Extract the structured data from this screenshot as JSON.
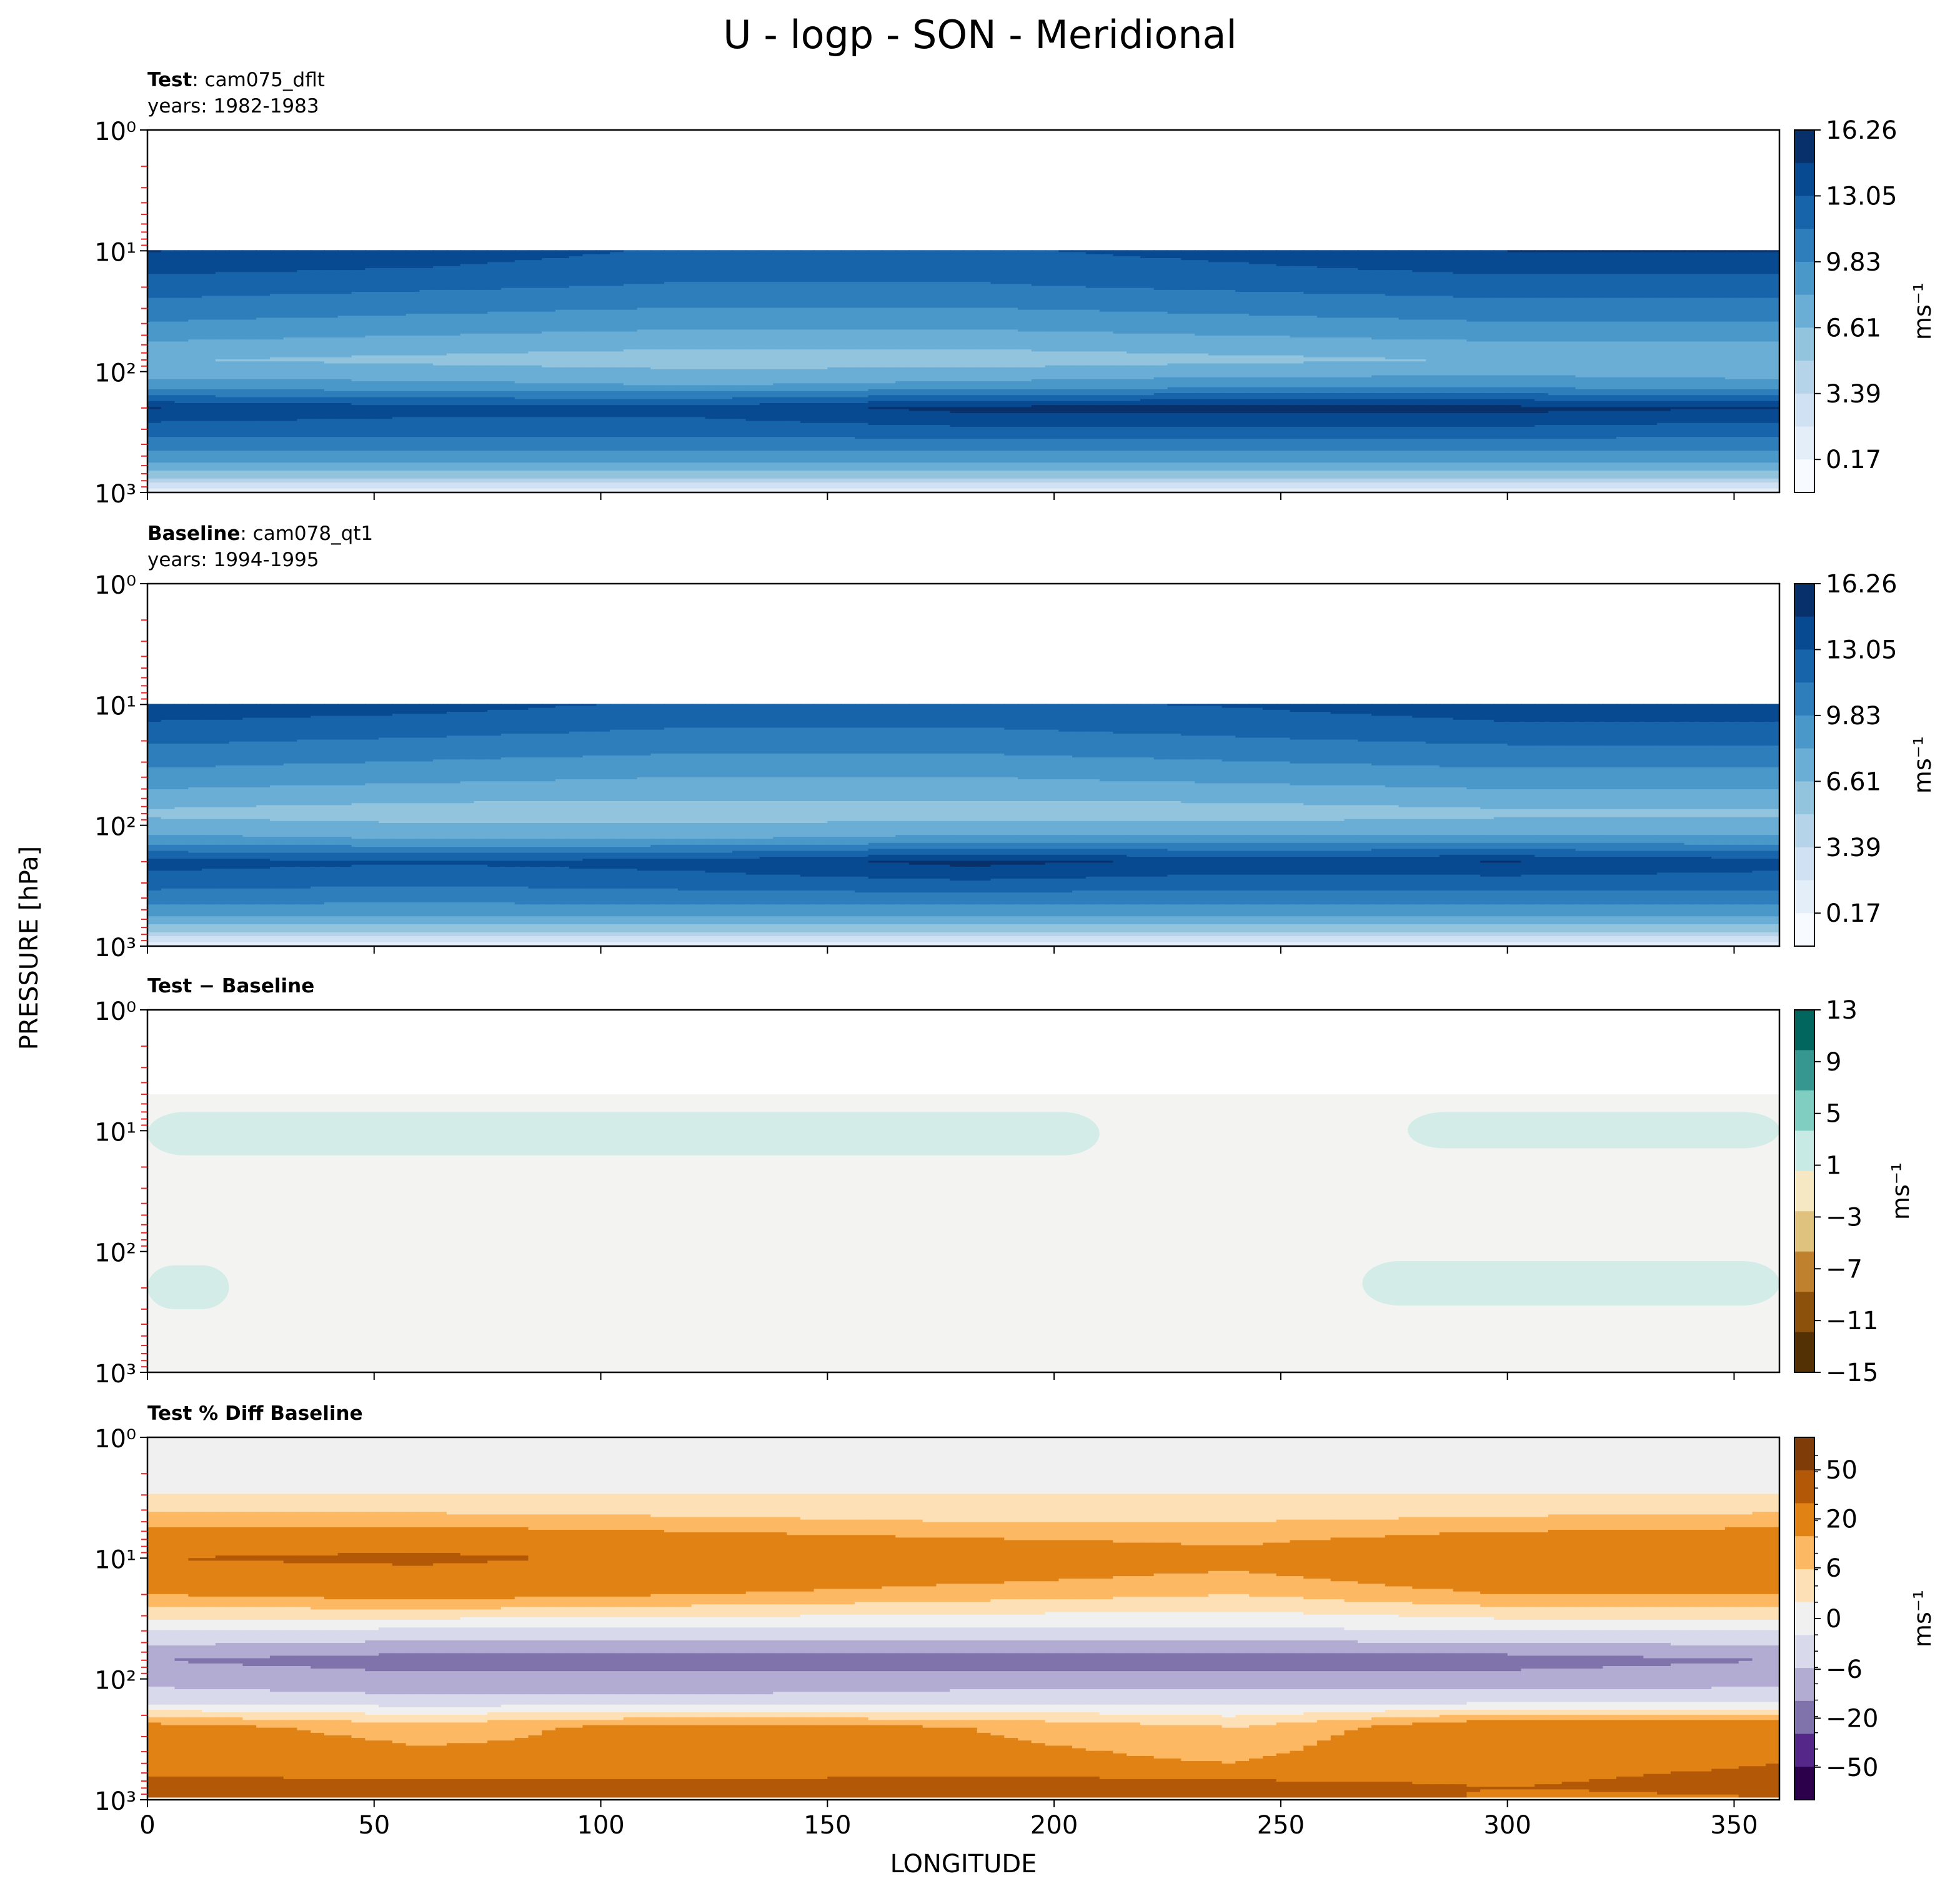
{
  "figure": {
    "title": "U - logp - SON - Meridional",
    "xlabel": "LONGITUDE",
    "ylabel": "PRESSURE [hPa]"
  },
  "colors": {
    "blues": [
      "#f7fbff",
      "#e3eef9",
      "#cfe1f2",
      "#b5d4e9",
      "#93c4de",
      "#6aaed6",
      "#4a98c9",
      "#2e7ebc",
      "#1764ab",
      "#084a91",
      "#08306b"
    ],
    "brbg_diff": [
      "#543005",
      "#8c510a",
      "#bf812d",
      "#dfc27d",
      "#f6e8c3",
      "#f5f5f5",
      "#c7eae5",
      "#80cdc1",
      "#35978f",
      "#01665e",
      "#003c30"
    ],
    "puor_pct": [
      "#2d004b",
      "#542788",
      "#8073ac",
      "#b2abd2",
      "#d8daeb",
      "#f0f0f0",
      "#fee0b6",
      "#fdb863",
      "#e08214",
      "#b35806",
      "#7f3b08"
    ]
  },
  "panels": [
    {
      "id": "test",
      "label_bold": "Test",
      "label_rest": ": cam075_dflt",
      "years": "years: 1982-1983",
      "colorbar_ticks": [
        "16.26",
        "13.05",
        "9.83",
        "6.61",
        "3.39",
        "0.17"
      ],
      "colorbar_label": "ms⁻¹"
    },
    {
      "id": "baseline",
      "label_bold": "Baseline",
      "label_rest": ": cam078_qt1",
      "years": "years: 1994-1995",
      "colorbar_ticks": [
        "16.26",
        "13.05",
        "9.83",
        "6.61",
        "3.39",
        "0.17"
      ],
      "colorbar_label": "ms⁻¹"
    },
    {
      "id": "diff",
      "label_bold": "Test − Baseline",
      "label_rest": "",
      "years": "",
      "colorbar_ticks": [
        "13",
        "9",
        "5",
        "1",
        "−3",
        "−7",
        "−11",
        "−15"
      ],
      "colorbar_label": "ms⁻¹"
    },
    {
      "id": "pctdiff",
      "label_bold": "Test % Diff Baseline",
      "label_rest": "",
      "years": "",
      "colorbar_ticks": [
        "50",
        "20",
        "6",
        "0",
        "−6",
        "−20",
        "−50"
      ],
      "colorbar_label": "ms⁻¹"
    }
  ],
  "chart_data": [
    {
      "type": "heatmap",
      "title": "Test: cam075_dflt",
      "subtitle": "years: 1982-1983",
      "xlabel": "LONGITUDE",
      "ylabel": "PRESSURE [hPa]",
      "x_ticks": [
        0,
        50,
        100,
        150,
        200,
        250,
        300,
        350
      ],
      "xlim": [
        0,
        360
      ],
      "y_ticks": [
        "10⁰",
        "10¹",
        "10²",
        "10³"
      ],
      "ylim": [
        1000,
        1
      ],
      "y_scale": "log",
      "colormap": "Blues",
      "levels": [
        0.17,
        3.39,
        6.61,
        9.83,
        13.05,
        16.26
      ],
      "pressure_hPa": [
        5,
        10,
        20,
        40,
        80,
        130,
        200,
        300,
        500,
        700,
        850,
        1000
      ],
      "longitude": [
        0,
        60,
        120,
        180,
        240,
        300,
        360
      ],
      "values_ms": [
        [
          null,
          null,
          null,
          null,
          null,
          null,
          null
        ],
        [
          15.5,
          15.0,
          13.5,
          13.5,
          14.5,
          15.5,
          15.5
        ],
        [
          13.0,
          12.5,
          12.0,
          12.0,
          12.5,
          13.0,
          13.0
        ],
        [
          10.5,
          10.0,
          9.5,
          9.5,
          10.0,
          10.5,
          10.5
        ],
        [
          7.5,
          7.0,
          6.5,
          6.5,
          7.0,
          7.5,
          7.5
        ],
        [
          9.5,
          9.5,
          9.0,
          9.5,
          10.0,
          10.0,
          9.5
        ],
        [
          15.5,
          14.5,
          14.5,
          16.0,
          16.0,
          16.0,
          15.5
        ],
        [
          13.0,
          13.0,
          13.0,
          13.5,
          13.5,
          13.5,
          13.0
        ],
        [
          10.0,
          10.0,
          10.0,
          10.0,
          10.0,
          10.0,
          10.0
        ],
        [
          7.0,
          7.0,
          7.0,
          7.0,
          7.0,
          7.0,
          7.0
        ],
        [
          4.0,
          4.0,
          4.0,
          4.0,
          4.0,
          4.0,
          4.0
        ],
        [
          1.5,
          1.5,
          1.5,
          1.5,
          1.5,
          1.5,
          1.5
        ]
      ],
      "units": "ms⁻¹"
    },
    {
      "type": "heatmap",
      "title": "Baseline: cam078_qt1",
      "subtitle": "years: 1994-1995",
      "xlabel": "LONGITUDE",
      "ylabel": "PRESSURE [hPa]",
      "x_ticks": [
        0,
        50,
        100,
        150,
        200,
        250,
        300,
        350
      ],
      "xlim": [
        0,
        360
      ],
      "y_ticks": [
        "10⁰",
        "10¹",
        "10²",
        "10³"
      ],
      "ylim": [
        1000,
        1
      ],
      "y_scale": "log",
      "colormap": "Blues",
      "levels": [
        0.17,
        3.39,
        6.61,
        9.83,
        13.05,
        16.26
      ],
      "pressure_hPa": [
        5,
        10,
        20,
        40,
        80,
        130,
        200,
        300,
        500,
        700,
        850,
        1000
      ],
      "longitude": [
        0,
        60,
        120,
        180,
        240,
        300,
        360
      ],
      "values_ms": [
        [
          null,
          null,
          null,
          null,
          null,
          null,
          null
        ],
        [
          15.0,
          14.5,
          13.5,
          13.5,
          14.0,
          15.0,
          15.0
        ],
        [
          12.5,
          12.0,
          11.5,
          11.5,
          12.0,
          12.5,
          12.5
        ],
        [
          10.0,
          9.5,
          9.0,
          9.0,
          9.5,
          10.0,
          10.0
        ],
        [
          7.0,
          6.5,
          6.5,
          6.5,
          6.5,
          7.0,
          7.0
        ],
        [
          9.5,
          9.0,
          9.0,
          9.5,
          9.5,
          9.5,
          9.5
        ],
        [
          14.5,
          14.0,
          14.5,
          16.0,
          15.0,
          15.5,
          14.5
        ],
        [
          13.0,
          12.5,
          13.0,
          13.5,
          13.0,
          13.0,
          13.0
        ],
        [
          10.0,
          10.0,
          10.0,
          10.0,
          10.0,
          10.0,
          10.0
        ],
        [
          7.0,
          7.0,
          7.0,
          7.0,
          7.0,
          7.0,
          7.0
        ],
        [
          4.0,
          4.0,
          4.0,
          4.0,
          4.0,
          4.0,
          4.0
        ],
        [
          1.5,
          1.5,
          1.5,
          1.5,
          1.5,
          1.5,
          1.5
        ]
      ],
      "units": "ms⁻¹"
    },
    {
      "type": "heatmap",
      "title": "Test − Baseline",
      "xlabel": "LONGITUDE",
      "ylabel": "PRESSURE [hPa]",
      "x_ticks": [
        0,
        50,
        100,
        150,
        200,
        250,
        300,
        350
      ],
      "xlim": [
        0,
        360
      ],
      "y_ticks": [
        "10⁰",
        "10¹",
        "10²",
        "10³"
      ],
      "ylim": [
        1000,
        1
      ],
      "y_scale": "log",
      "colormap": "BrBG",
      "levels": [
        -15,
        -11,
        -7,
        -3,
        1,
        5,
        9,
        13
      ],
      "regions": [
        {
          "value_range": [
            -1,
            1
          ],
          "description": "background across 5-1000 hPa"
        },
        {
          "value_range": [
            1,
            5
          ],
          "pressure_hPa": [
            7,
            16
          ],
          "longitude": [
            0,
            210
          ]
        },
        {
          "value_range": [
            1,
            5
          ],
          "pressure_hPa": [
            7,
            14
          ],
          "longitude": [
            278,
            360
          ]
        },
        {
          "value_range": [
            1,
            5
          ],
          "pressure_hPa": [
            130,
            300
          ],
          "longitude": [
            0,
            18
          ]
        },
        {
          "value_range": [
            1,
            5
          ],
          "pressure_hPa": [
            120,
            280
          ],
          "longitude": [
            268,
            360
          ]
        }
      ],
      "units": "ms⁻¹"
    },
    {
      "type": "heatmap",
      "title": "Test % Diff Baseline",
      "xlabel": "LONGITUDE",
      "ylabel": "PRESSURE [hPa]",
      "x_ticks": [
        0,
        50,
        100,
        150,
        200,
        250,
        300,
        350
      ],
      "xlim": [
        0,
        360
      ],
      "y_ticks": [
        "10⁰",
        "10¹",
        "10²",
        "10³"
      ],
      "ylim": [
        1000,
        1
      ],
      "y_scale": "log",
      "colormap": "PuOr_r",
      "levels": [
        -50,
        -20,
        -6,
        0,
        6,
        20,
        50
      ],
      "pressure_hPa": [
        1,
        3,
        5,
        10,
        20,
        40,
        70,
        150,
        250,
        500,
        800,
        950
      ],
      "values_pct": [
        [
          -1,
          -1,
          -1,
          -1,
          -1,
          -1,
          -1
        ],
        [
          2,
          2,
          2,
          2,
          2,
          2,
          2
        ],
        [
          8,
          8,
          7,
          6,
          6,
          7,
          8
        ],
        [
          20,
          22,
          18,
          15,
          12,
          18,
          20
        ],
        [
          10,
          12,
          10,
          8,
          6,
          10,
          10
        ],
        [
          -2,
          -3,
          -3,
          -3,
          -3,
          -2,
          -2
        ],
        [
          -10,
          -12,
          -12,
          -12,
          -12,
          -12,
          -10
        ],
        [
          -4,
          -5,
          -5,
          -4,
          -4,
          -4,
          -4
        ],
        [
          12,
          8,
          12,
          10,
          6,
          15,
          15
        ],
        [
          14,
          12,
          10,
          12,
          10,
          15,
          20
        ],
        [
          25,
          25,
          25,
          28,
          25,
          20,
          25
        ],
        [
          45,
          45,
          45,
          50,
          45,
          15,
          20
        ]
      ],
      "longitude": [
        0,
        60,
        120,
        180,
        240,
        300,
        360
      ],
      "units": "ms⁻¹"
    }
  ]
}
